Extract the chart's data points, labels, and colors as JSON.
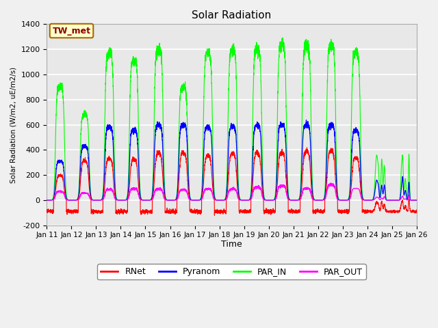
{
  "title": "Solar Radiation",
  "ylabel": "Solar Radiation (W/m2, uE/m2/s)",
  "xlabel": "Time",
  "ylim": [
    -200,
    1400
  ],
  "yticks": [
    -200,
    0,
    200,
    400,
    600,
    800,
    1000,
    1200,
    1400
  ],
  "xtick_labels": [
    "Jan 11",
    "Jan 12",
    "Jan 13",
    "Jan 14",
    "Jan 15",
    "Jan 16",
    "Jan 17",
    "Jan 18",
    "Jan 19",
    "Jan 20",
    "Jan 21",
    "Jan 22",
    "Jan 23",
    "Jan 24",
    "Jan 25",
    "Jan 26"
  ],
  "annotation_text": "TW_met",
  "annotation_bg": "#ffffcc",
  "annotation_border": "#aa6600",
  "colors": {
    "RNet": "#ff0000",
    "Pyranom": "#0000ff",
    "PAR_IN": "#00ff00",
    "PAR_OUT": "#ff00ff"
  },
  "legend_labels": [
    "RNet",
    "Pyranom",
    "PAR_IN",
    "PAR_OUT"
  ],
  "background_color": "#e8e8e8",
  "grid_color": "#ffffff",
  "n_days": 15,
  "pts_per_day": 288,
  "seed": 42
}
